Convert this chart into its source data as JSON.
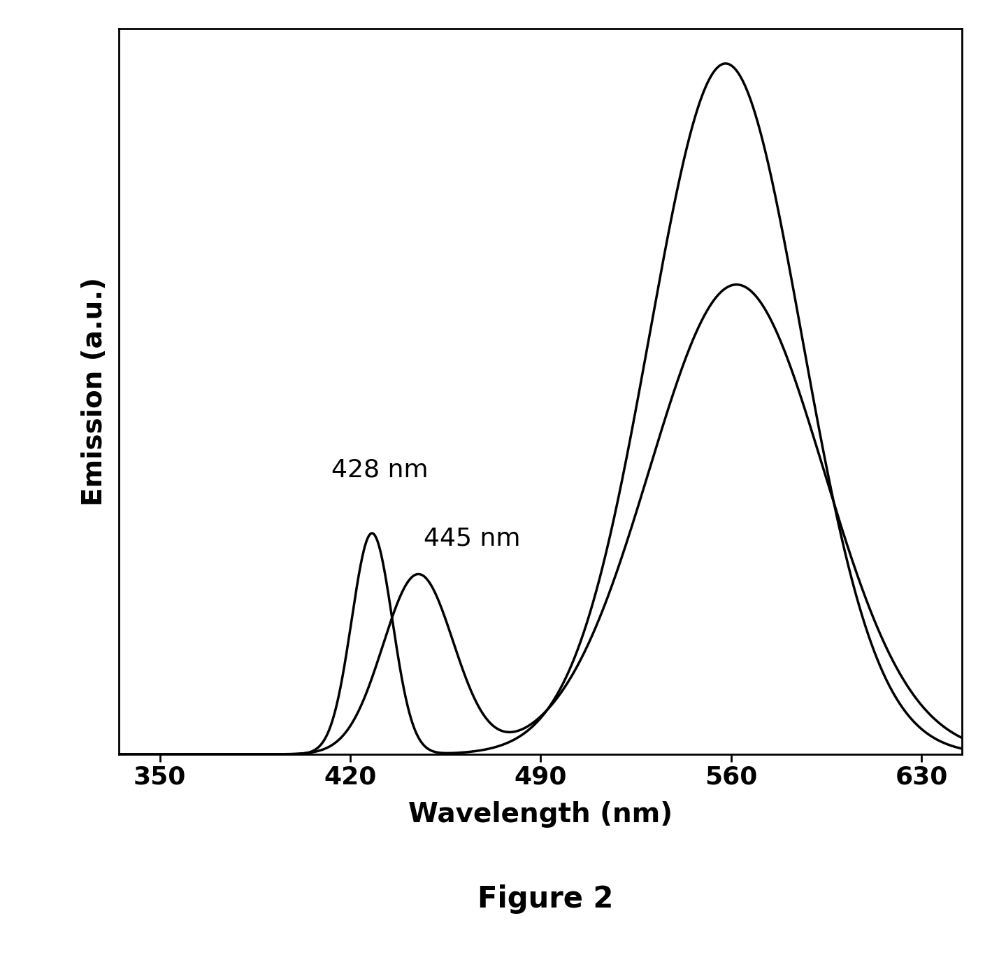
{
  "xlabel": "Wavelength (nm)",
  "ylabel": "Emission (a.u.)",
  "figure_label": "Figure 2",
  "xticks": [
    350,
    420,
    490,
    560,
    630
  ],
  "xlim": [
    335,
    645
  ],
  "ylim": [
    0,
    1.05
  ],
  "annotation1": "428 nm",
  "annotation2": "445 nm",
  "curve_color": "#000000",
  "background_color": "#ffffff",
  "linewidth": 2.5,
  "title_fontsize": 30,
  "axis_label_fontsize": 28,
  "tick_fontsize": 26,
  "annot_fontsize": 26
}
